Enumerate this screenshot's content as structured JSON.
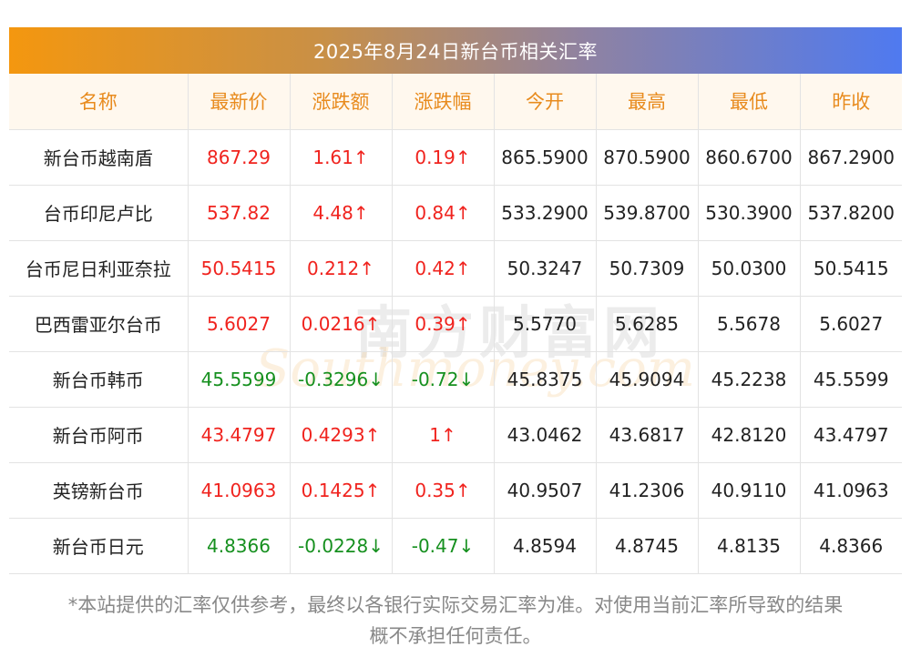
{
  "title": "2025年8月24日新台币相关汇率",
  "headers": [
    "名称",
    "最新价",
    "涨跌额",
    "涨跌幅",
    "今开",
    "最高",
    "最低",
    "昨收"
  ],
  "rows": [
    {
      "name": "新台币越南盾",
      "latest": "867.29",
      "change": "1.61↑",
      "pct": "0.19↑",
      "open": "865.5900",
      "high": "870.5900",
      "low": "860.6700",
      "prev": "867.2900",
      "dir": "up"
    },
    {
      "name": "台币印尼卢比",
      "latest": "537.82",
      "change": "4.48↑",
      "pct": "0.84↑",
      "open": "533.2900",
      "high": "539.8700",
      "low": "530.3900",
      "prev": "537.8200",
      "dir": "up"
    },
    {
      "name": "台币尼日利亚奈拉",
      "latest": "50.5415",
      "change": "0.212↑",
      "pct": "0.42↑",
      "open": "50.3247",
      "high": "50.7309",
      "low": "50.0300",
      "prev": "50.5415",
      "dir": "up"
    },
    {
      "name": "巴西雷亚尔台币",
      "latest": "5.6027",
      "change": "0.0216↑",
      "pct": "0.39↑",
      "open": "5.5770",
      "high": "5.6285",
      "low": "5.5678",
      "prev": "5.6027",
      "dir": "up"
    },
    {
      "name": "新台币韩币",
      "latest": "45.5599",
      "change": "-0.3296↓",
      "pct": "-0.72↓",
      "open": "45.8375",
      "high": "45.9094",
      "low": "45.2238",
      "prev": "45.5599",
      "dir": "down"
    },
    {
      "name": "新台币阿币",
      "latest": "43.4797",
      "change": "0.4293↑",
      "pct": "1↑",
      "open": "43.0462",
      "high": "43.6817",
      "low": "42.8120",
      "prev": "43.4797",
      "dir": "up"
    },
    {
      "name": "英镑新台币",
      "latest": "41.0963",
      "change": "0.1425↑",
      "pct": "0.35↑",
      "open": "40.9507",
      "high": "41.2306",
      "low": "40.9110",
      "prev": "41.0963",
      "dir": "up"
    },
    {
      "name": "新台币日元",
      "latest": "4.8366",
      "change": "-0.0228↓",
      "pct": "-0.47↓",
      "open": "4.8594",
      "high": "4.8745",
      "low": "4.8135",
      "prev": "4.8366",
      "dir": "down"
    }
  ],
  "watermark": {
    "cn": "南方财富网",
    "en": "Southmoney.com"
  },
  "note": {
    "line1": "*本站提供的汇率仅供参考，最终以各银行实际交易汇率为准。对使用当前汇率所导致的结果",
    "line2": "概不承担任何责任。"
  },
  "colors": {
    "up": "#f0231e",
    "down": "#16901f",
    "header_text": "#e88b1e",
    "header_bg": "#fff8ee"
  }
}
